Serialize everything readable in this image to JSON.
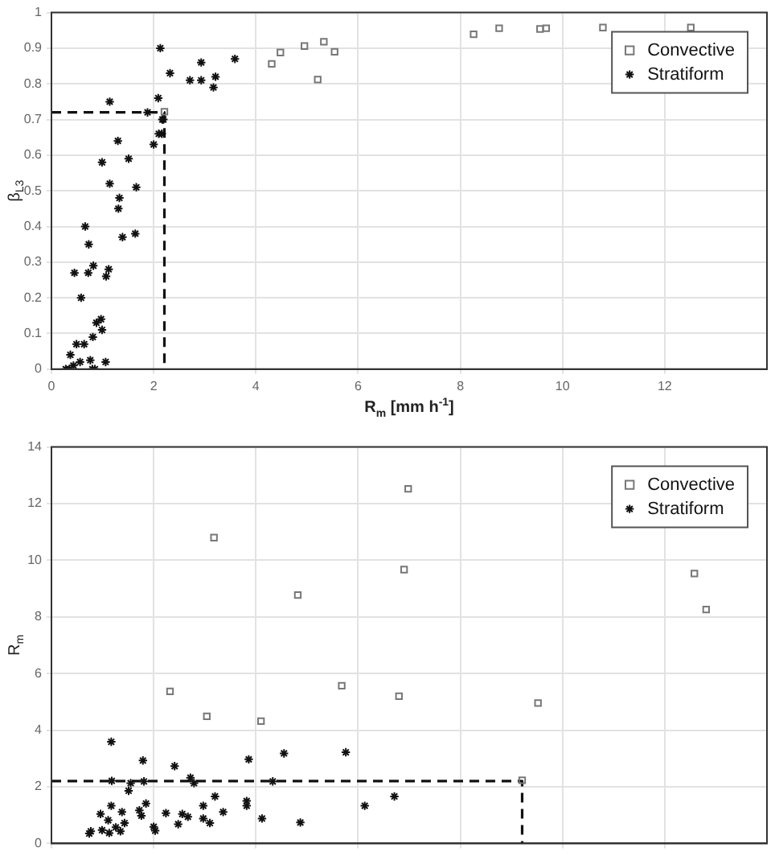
{
  "chart_data": [
    {
      "type": "scatter",
      "xlabel": "R$_{m}$ [mm h$^{-1}$]",
      "ylabel": "β$_{L3}$",
      "xlim": [
        0,
        14
      ],
      "xticks": [
        0,
        2,
        4,
        6,
        8,
        10,
        12
      ],
      "ylim": [
        0,
        1
      ],
      "yticks": [
        0,
        0.1,
        0.2,
        0.3,
        0.4,
        0.5,
        0.6,
        0.7,
        0.8,
        0.9,
        1
      ],
      "grid": true,
      "legend": "top right",
      "series": [
        {
          "name": "Convective",
          "color": "#777777",
          "marker": "square",
          "x": [
            8.26,
            8.76,
            9.56,
            9.68,
            10.79,
            12.51,
            4.31,
            4.48,
            4.95,
            5.33,
            5.21,
            5.54,
            2.21
          ],
          "values": [
            0.939,
            0.956,
            0.954,
            0.956,
            0.958,
            0.958,
            0.856,
            0.888,
            0.906,
            0.918,
            0.812,
            0.89,
            0.722
          ]
        },
        {
          "name": "Stratiform",
          "color": "#111111",
          "marker": "cross",
          "x": [
            2.13,
            2.32,
            2.71,
            2.93,
            2.93,
            3.17,
            3.21,
            3.59,
            1.14,
            2.09,
            1.88,
            2.17,
            2.19,
            2.1,
            2.16,
            2.0,
            1.3,
            0.99,
            1.51,
            1.14,
            1.66,
            1.33,
            1.31,
            1.39,
            1.64,
            0.66,
            0.73,
            0.45,
            0.72,
            0.82,
            1.12,
            1.07,
            0.58,
            0.97,
            0.88,
            0.99,
            0.81,
            0.49,
            0.64,
            0.37,
            0.28,
            0.35,
            0.43,
            0.56,
            0.76,
            0.8,
            0.85,
            1.06
          ],
          "values": [
            0.9,
            0.83,
            0.81,
            0.86,
            0.81,
            0.79,
            0.82,
            0.87,
            0.75,
            0.76,
            0.72,
            0.7,
            0.7,
            0.66,
            0.66,
            0.63,
            0.64,
            0.58,
            0.59,
            0.52,
            0.51,
            0.48,
            0.45,
            0.37,
            0.38,
            0.4,
            0.35,
            0.27,
            0.27,
            0.29,
            0.28,
            0.26,
            0.2,
            0.14,
            0.13,
            0.11,
            0.09,
            0.07,
            0.07,
            0.04,
            0,
            0,
            0.01,
            0.02,
            0.025,
            0,
            0,
            0.02
          ]
        },
        {
          "type": "line",
          "color": "#111111",
          "line_style": "dashed",
          "marker": "none",
          "x": [
            0,
            2.21,
            2.21
          ],
          "values": [
            0.72,
            0.72,
            0
          ]
        }
      ]
    },
    {
      "type": "scatter",
      "ylabel": "R$_{m}$",
      "xlim": [
        0,
        14
      ],
      "xticks": [
        0,
        2,
        4,
        6,
        8,
        10,
        12
      ],
      "ylim": [
        0,
        14
      ],
      "yticks": [
        0,
        2,
        4,
        6,
        8,
        10,
        12,
        14
      ],
      "grid": true,
      "legend": "top right",
      "tick_labels": "y",
      "series": [
        {
          "name": "Convective",
          "color": "#777777",
          "marker": "square",
          "x": [
            2.32,
            3.04,
            3.18,
            4.1,
            4.82,
            5.68,
            6.8,
            6.9,
            6.98,
            9.21,
            9.52,
            12.58,
            12.81
          ],
          "values": [
            5.37,
            4.49,
            10.8,
            4.32,
            8.77,
            5.57,
            5.2,
            9.67,
            12.52,
            2.23,
            4.96,
            9.53,
            8.26
          ]
        },
        {
          "name": "Stratiform",
          "color": "#111111",
          "marker": "cross",
          "x": [
            1.17,
            1.79,
            2.41,
            3.86,
            4.55,
            5.76,
            1.18,
            1.55,
            1.81,
            2.72,
            2.79,
            4.33,
            1.51,
            1.17,
            1.38,
            1.72,
            1.85,
            1.76,
            2.24,
            0.96,
            1.11,
            0.99,
            1.13,
            1.26,
            1.35,
            1.43,
            0.74,
            0.77,
            2.0,
            2.03,
            2.48,
            2.56,
            2.67,
            2.97,
            2.97,
            3.1,
            3.2,
            3.36,
            3.82,
            3.82,
            4.12,
            4.87,
            6.13,
            6.71
          ],
          "values": [
            3.59,
            2.93,
            2.73,
            2.97,
            3.18,
            3.22,
            2.21,
            2.13,
            2.19,
            2.32,
            2.13,
            2.19,
            1.86,
            1.33,
            1.11,
            1.17,
            1.41,
            0.98,
            1.07,
            1.04,
            0.82,
            0.47,
            0.37,
            0.57,
            0.43,
            0.72,
            0.35,
            0.43,
            0.59,
            0.45,
            0.68,
            1.04,
            0.94,
            1.33,
            0.88,
            0.72,
            1.66,
            1.11,
            1.5,
            1.33,
            0.88,
            0.74,
            1.33,
            1.66
          ]
        },
        {
          "type": "line",
          "color": "#111111",
          "line_style": "dashed",
          "marker": "none",
          "x": [
            0,
            9.21,
            9.21
          ],
          "values": [
            2.2,
            2.2,
            0
          ]
        }
      ]
    }
  ]
}
